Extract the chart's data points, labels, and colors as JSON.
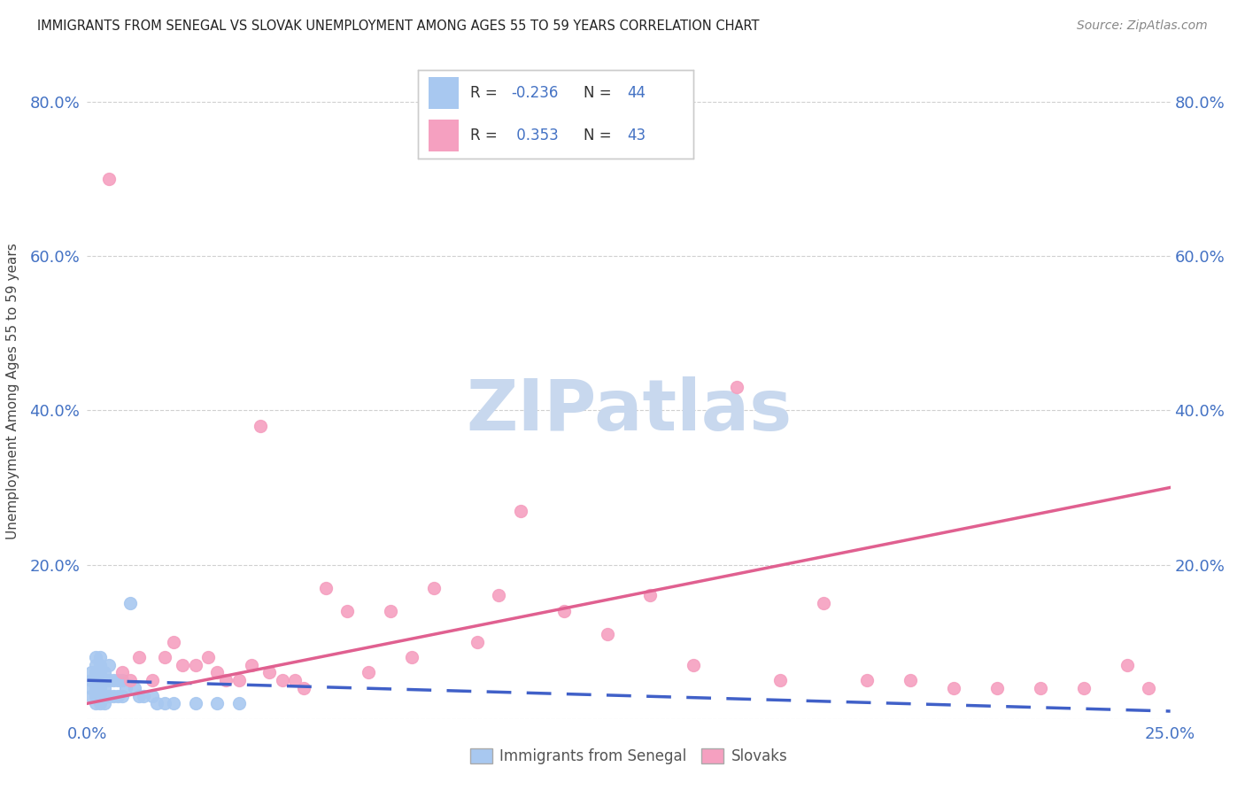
{
  "title": "IMMIGRANTS FROM SENEGAL VS SLOVAK UNEMPLOYMENT AMONG AGES 55 TO 59 YEARS CORRELATION CHART",
  "source": "Source: ZipAtlas.com",
  "ylabel": "Unemployment Among Ages 55 to 59 years",
  "xlim": [
    0.0,
    0.25
  ],
  "ylim": [
    0.0,
    0.85
  ],
  "xticks": [
    0.0,
    0.05,
    0.1,
    0.15,
    0.2,
    0.25
  ],
  "yticks": [
    0.0,
    0.2,
    0.4,
    0.6,
    0.8
  ],
  "ytick_labels_left": [
    "",
    "20.0%",
    "40.0%",
    "60.0%",
    "80.0%"
  ],
  "ytick_labels_right": [
    "",
    "20.0%",
    "40.0%",
    "60.0%",
    "80.0%"
  ],
  "xtick_labels": [
    "0.0%",
    "",
    "",
    "",
    "",
    "25.0%"
  ],
  "blue_r": "-0.236",
  "blue_n": "44",
  "pink_r": "0.353",
  "pink_n": "43",
  "blue_scatter_x": [
    0.001,
    0.001,
    0.001,
    0.001,
    0.002,
    0.002,
    0.002,
    0.002,
    0.002,
    0.002,
    0.002,
    0.003,
    0.003,
    0.003,
    0.003,
    0.003,
    0.003,
    0.003,
    0.004,
    0.004,
    0.004,
    0.004,
    0.004,
    0.005,
    0.005,
    0.005,
    0.006,
    0.006,
    0.007,
    0.007,
    0.008,
    0.008,
    0.009,
    0.01,
    0.011,
    0.012,
    0.013,
    0.015,
    0.016,
    0.018,
    0.02,
    0.025,
    0.03,
    0.035
  ],
  "blue_scatter_y": [
    0.03,
    0.04,
    0.05,
    0.06,
    0.02,
    0.03,
    0.04,
    0.05,
    0.06,
    0.07,
    0.08,
    0.02,
    0.03,
    0.04,
    0.05,
    0.06,
    0.07,
    0.08,
    0.02,
    0.03,
    0.04,
    0.05,
    0.06,
    0.03,
    0.05,
    0.07,
    0.03,
    0.05,
    0.03,
    0.05,
    0.03,
    0.05,
    0.04,
    0.15,
    0.04,
    0.03,
    0.03,
    0.03,
    0.02,
    0.02,
    0.02,
    0.02,
    0.02,
    0.02
  ],
  "pink_scatter_x": [
    0.005,
    0.008,
    0.01,
    0.012,
    0.015,
    0.018,
    0.02,
    0.022,
    0.025,
    0.028,
    0.03,
    0.032,
    0.035,
    0.038,
    0.04,
    0.042,
    0.045,
    0.048,
    0.05,
    0.055,
    0.06,
    0.065,
    0.07,
    0.075,
    0.08,
    0.09,
    0.095,
    0.1,
    0.11,
    0.12,
    0.13,
    0.14,
    0.15,
    0.16,
    0.17,
    0.18,
    0.19,
    0.2,
    0.21,
    0.22,
    0.23,
    0.24,
    0.245
  ],
  "pink_scatter_y": [
    0.7,
    0.06,
    0.05,
    0.08,
    0.05,
    0.08,
    0.1,
    0.07,
    0.07,
    0.08,
    0.06,
    0.05,
    0.05,
    0.07,
    0.38,
    0.06,
    0.05,
    0.05,
    0.04,
    0.17,
    0.14,
    0.06,
    0.14,
    0.08,
    0.17,
    0.1,
    0.16,
    0.27,
    0.14,
    0.11,
    0.16,
    0.07,
    0.43,
    0.05,
    0.15,
    0.05,
    0.05,
    0.04,
    0.04,
    0.04,
    0.04,
    0.07,
    0.04
  ],
  "blue_line_x0": 0.0,
  "blue_line_x1": 0.25,
  "blue_line_y0": 0.05,
  "blue_line_y1": 0.01,
  "pink_line_x0": 0.0,
  "pink_line_x1": 0.25,
  "pink_line_y0": 0.02,
  "pink_line_y1": 0.3,
  "scatter_size": 100,
  "blue_color": "#a8c8f0",
  "pink_color": "#f5a0c0",
  "blue_line_color": "#4060c8",
  "pink_line_color": "#e06090",
  "background_color": "#ffffff",
  "grid_color": "#d0d0d0",
  "title_color": "#222222",
  "axis_label_color": "#444444",
  "tick_color": "#4472c4",
  "watermark_text": "ZIPatlas",
  "watermark_color": "#c8d8ee",
  "legend_blue_color": "#a8c8f0",
  "legend_pink_color": "#f5a0c0"
}
